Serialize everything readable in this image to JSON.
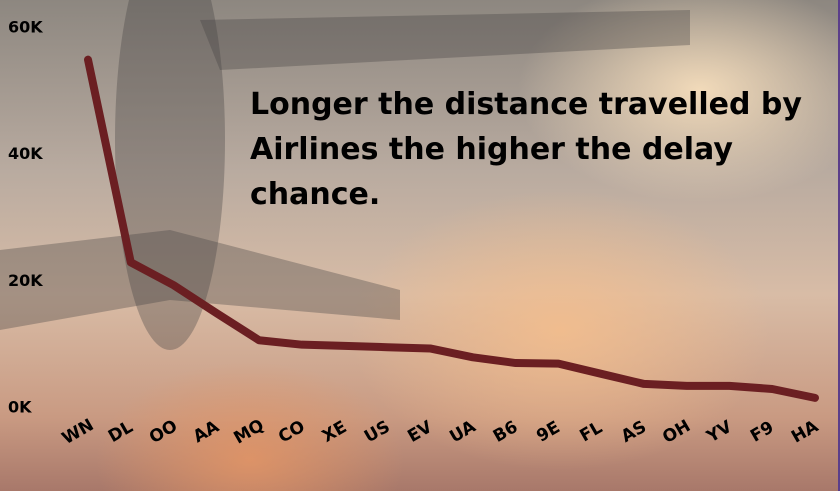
{
  "chart_data": {
    "type": "line",
    "annotation": " Longer the distance travelled by Airlines the higher the delay chance.",
    "categories": [
      "WN",
      "DL",
      "OO",
      "AA",
      "MQ",
      "CO",
      "XE",
      "US",
      "EV",
      "UA",
      "B6",
      "9E",
      "FL",
      "AS",
      "OH",
      "YV",
      "F9",
      "HA"
    ],
    "series": [
      {
        "color": "#6b1f22",
        "values": [
          55000,
          23000,
          19400,
          15000,
          10700,
          10000,
          9800,
          9600,
          9400,
          8000,
          7100,
          7000,
          5400,
          3800,
          3500,
          3500,
          3000,
          1600
        ]
      }
    ],
    "ylim": [
      0,
      60000
    ],
    "yticks": [
      {
        "value": 0,
        "label": "0K"
      },
      {
        "value": 20000,
        "label": "20K"
      },
      {
        "value": 40000,
        "label": "40K"
      },
      {
        "value": 60000,
        "label": "60K"
      }
    ]
  }
}
